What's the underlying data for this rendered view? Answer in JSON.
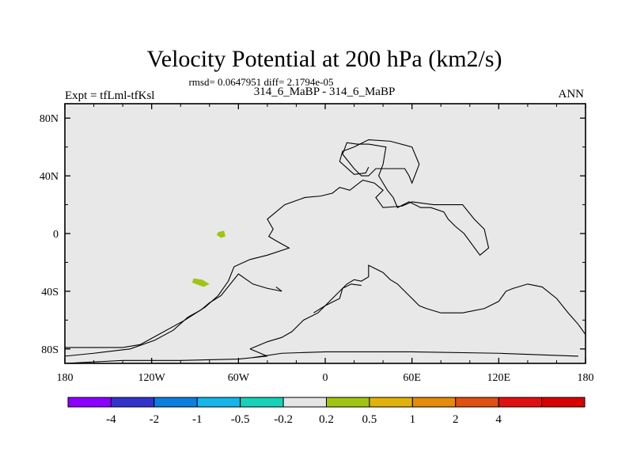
{
  "chart_data": {
    "type": "heatmap",
    "title": "Velocity Potential at 200 hPa (km2/s)",
    "subtitle": "rmsd= 0.0647951  diff= 2.1794e-05",
    "left_label": "Expt = tfLml-tfKsl",
    "center_label": "314_6_MaBP - 314_6_MaBP",
    "right_label": "ANN",
    "x_axis": {
      "range": [
        -180,
        180
      ],
      "ticks": [
        -180,
        -120,
        -60,
        0,
        60,
        120,
        180
      ],
      "tick_labels": [
        "180",
        "120W",
        "60W",
        "0",
        "60E",
        "120E",
        "180"
      ]
    },
    "y_axis": {
      "range": [
        -90,
        90
      ],
      "ticks": [
        80,
        40,
        0,
        -40,
        -80
      ],
      "tick_labels": [
        "80N",
        "40N",
        "0",
        "40S",
        "80S"
      ]
    },
    "background_color": "#e8e8e8",
    "coastlines": [
      [
        [
          -180,
          -79
        ],
        [
          -140,
          -79
        ],
        [
          -128,
          -77
        ],
        [
          -117,
          -71
        ],
        [
          -97,
          -60
        ],
        [
          -83,
          -51
        ],
        [
          -74,
          -43
        ],
        [
          -67,
          -33
        ],
        [
          -63,
          -23
        ],
        [
          -52,
          -18
        ],
        [
          -40,
          -15
        ],
        [
          -25,
          -10
        ],
        [
          -34,
          -5
        ],
        [
          -39,
          -2
        ],
        [
          -36,
          3
        ],
        [
          -40,
          10
        ],
        [
          -28,
          20
        ],
        [
          -14,
          25
        ],
        [
          -3,
          26
        ],
        [
          5,
          28
        ],
        [
          10,
          32
        ],
        [
          17,
          30
        ],
        [
          26,
          37
        ],
        [
          34,
          35
        ],
        [
          40,
          30
        ],
        [
          35,
          25
        ],
        [
          40,
          18
        ],
        [
          53,
          19
        ],
        [
          60,
          22
        ],
        [
          75,
          20
        ],
        [
          95,
          20
        ],
        [
          103,
          10
        ],
        [
          110,
          3
        ],
        [
          113,
          -10
        ],
        [
          107,
          -15
        ],
        [
          96,
          0
        ],
        [
          90,
          5
        ],
        [
          85,
          10
        ],
        [
          82,
          15
        ],
        [
          73,
          18
        ],
        [
          66,
          18
        ],
        [
          58,
          22
        ],
        [
          50,
          18
        ],
        [
          47,
          25
        ],
        [
          43,
          30
        ],
        [
          37,
          40
        ],
        [
          40,
          48
        ],
        [
          42,
          60
        ],
        [
          30,
          62
        ],
        [
          22,
          62
        ],
        [
          15,
          63
        ],
        [
          12,
          55
        ],
        [
          20,
          45
        ],
        [
          25,
          40
        ],
        [
          30,
          40
        ],
        [
          35,
          45
        ],
        [
          45,
          45
        ],
        [
          55,
          45
        ],
        [
          58,
          40
        ],
        [
          60,
          35
        ],
        [
          65,
          48
        ],
        [
          60,
          60
        ],
        [
          45,
          64
        ],
        [
          30,
          65
        ],
        [
          20,
          60
        ],
        [
          12,
          57
        ],
        [
          10,
          50
        ],
        [
          20,
          41
        ],
        [
          28,
          42
        ],
        [
          30,
          46
        ]
      ],
      [
        [
          -180,
          -85
        ],
        [
          -160,
          -83
        ],
        [
          -135,
          -80
        ],
        [
          -118,
          -74
        ],
        [
          -105,
          -67
        ],
        [
          -95,
          -58
        ],
        [
          -86,
          -53
        ],
        [
          -80,
          -48
        ],
        [
          -72,
          -43
        ],
        [
          -60,
          -28
        ],
        [
          -50,
          -35
        ],
        [
          -40,
          -38
        ],
        [
          -30,
          -40
        ],
        [
          -34,
          -37
        ]
      ],
      [
        [
          -52,
          -80
        ],
        [
          -40,
          -75
        ],
        [
          -30,
          -72
        ],
        [
          -23,
          -68
        ],
        [
          -15,
          -60
        ],
        [
          -5,
          -55
        ],
        [
          5,
          -45
        ],
        [
          15,
          -35
        ],
        [
          20,
          -32
        ],
        [
          25,
          -33
        ],
        [
          30,
          -30
        ],
        [
          30,
          -22
        ],
        [
          40,
          -27
        ],
        [
          45,
          -32
        ],
        [
          50,
          -35
        ],
        [
          55,
          -40
        ],
        [
          60,
          -45
        ],
        [
          65,
          -50
        ],
        [
          70,
          -52
        ],
        [
          80,
          -55
        ],
        [
          95,
          -55
        ],
        [
          110,
          -52
        ],
        [
          120,
          -47
        ],
        [
          125,
          -40
        ],
        [
          130,
          -38
        ],
        [
          140,
          -35
        ],
        [
          150,
          -37
        ],
        [
          160,
          -45
        ],
        [
          168,
          -55
        ],
        [
          175,
          -63
        ],
        [
          180,
          -70
        ]
      ],
      [
        [
          -180,
          -90
        ],
        [
          -140,
          -88
        ],
        [
          -100,
          -88
        ],
        [
          -60,
          -87
        ],
        [
          -40,
          -85
        ],
        [
          -52,
          -80
        ]
      ],
      [
        [
          -50,
          -86
        ],
        [
          -30,
          -83
        ],
        [
          0,
          -82
        ],
        [
          60,
          -82
        ],
        [
          120,
          -83
        ],
        [
          175,
          -85
        ]
      ],
      [
        [
          -8,
          -55
        ],
        [
          0,
          -50
        ],
        [
          10,
          -45
        ],
        [
          12,
          -38
        ],
        [
          18,
          -35
        ],
        [
          25,
          -36
        ]
      ]
    ],
    "filled_contours": [
      {
        "label": "0.2 to 0.5",
        "color": "#a0c510",
        "points": [
          [
            -91,
            -31
          ],
          [
            -85,
            -32
          ],
          [
            -80,
            -35
          ],
          [
            -84,
            -37
          ],
          [
            -92,
            -34
          ]
        ]
      },
      {
        "label": "0.2 to 0.5",
        "color": "#a0c510",
        "points": [
          [
            -74,
            1
          ],
          [
            -70,
            2
          ],
          [
            -69,
            -2
          ],
          [
            -72,
            -3
          ],
          [
            -75,
            -1
          ]
        ]
      }
    ],
    "colorbar": {
      "colors": [
        "#8b00ff",
        "#3333cc",
        "#0b7fe0",
        "#14b6ea",
        "#16d2b8",
        "#e5e5e5",
        "#a0c510",
        "#e0b20a",
        "#e58b0b",
        "#e05012",
        "#e01010",
        "#d80000"
      ],
      "labels": [
        "-4",
        "-2",
        "-1",
        "-0.5",
        "-0.2",
        "0.2",
        "0.5",
        "1",
        "2",
        "4"
      ]
    }
  }
}
